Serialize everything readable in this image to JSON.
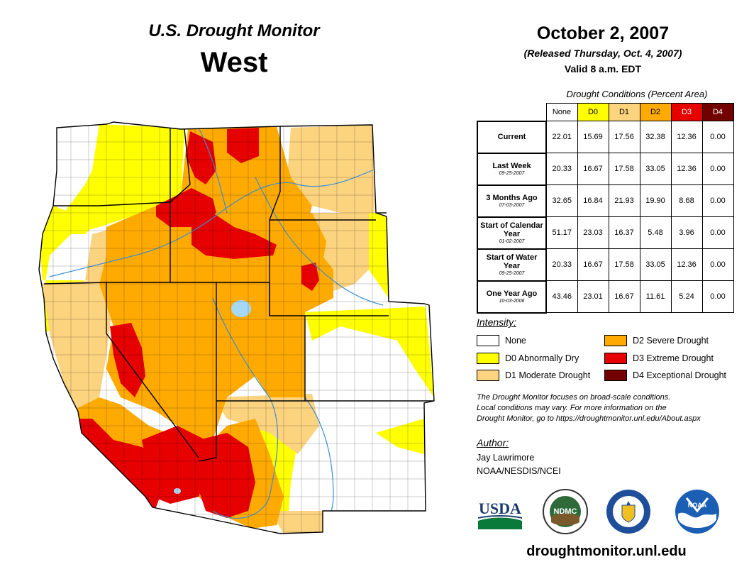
{
  "header": {
    "title": "U.S. Drought Monitor",
    "region": "West",
    "date": "October 2, 2007",
    "released": "(Released Thursday, Oct. 4, 2007)",
    "valid": "Valid 8 a.m. EDT"
  },
  "table": {
    "title": "Drought Conditions (Percent Area)",
    "columns": [
      "None",
      "D0",
      "D1",
      "D2",
      "D3",
      "D4"
    ],
    "column_colors": [
      "#ffffff",
      "#ffff00",
      "#fcd37f",
      "#ffaa00",
      "#e60000",
      "#730000"
    ],
    "rows": [
      {
        "label": "Current",
        "date": "",
        "values": [
          "22.01",
          "15.69",
          "17.56",
          "32.38",
          "12.36",
          "0.00"
        ]
      },
      {
        "label": "Last Week",
        "date": "09-25-2007",
        "values": [
          "20.33",
          "16.67",
          "17.58",
          "33.05",
          "12.36",
          "0.00"
        ]
      },
      {
        "label": "3 Months Ago",
        "date": "07-03-2007",
        "values": [
          "32.65",
          "16.84",
          "21.93",
          "19.90",
          "8.68",
          "0.00"
        ]
      },
      {
        "label": "Start of Calendar Year",
        "date": "01-02-2007",
        "values": [
          "51.17",
          "23.03",
          "16.37",
          "5.48",
          "3.96",
          "0.00"
        ]
      },
      {
        "label": "Start of Water Year",
        "date": "09-25-2007",
        "values": [
          "20.33",
          "16.67",
          "17.58",
          "33.05",
          "12.36",
          "0.00"
        ]
      },
      {
        "label": "One Year Ago",
        "date": "10-03-2006",
        "values": [
          "43.46",
          "23.01",
          "16.67",
          "11.61",
          "5.24",
          "0.00"
        ]
      }
    ]
  },
  "legend": {
    "title": "Intensity:",
    "items": [
      {
        "label": "None",
        "color": "#ffffff"
      },
      {
        "label": "D0 Abnormally Dry",
        "color": "#ffff00"
      },
      {
        "label": "D1 Moderate Drought",
        "color": "#fcd37f"
      },
      {
        "label": "D2 Severe Drought",
        "color": "#ffaa00"
      },
      {
        "label": "D3 Extreme Drought",
        "color": "#e60000"
      },
      {
        "label": "D4 Exceptional Drought",
        "color": "#730000"
      }
    ]
  },
  "note": {
    "line1": "The Drought Monitor focuses on broad-scale conditions.",
    "line2": "Local conditions may vary. For more information on the",
    "line3": "Drought Monitor, go to https://droughtmonitor.unl.edu/About.aspx"
  },
  "author": {
    "label": "Author:",
    "name": "Jay Lawrimore",
    "org": "NOAA/NESDIS/NCEI"
  },
  "logos": {
    "usda": "USDA",
    "ndmc": "NDMC",
    "noaa": "NOAA"
  },
  "footer_url": "droughtmonitor.unl.edu"
}
